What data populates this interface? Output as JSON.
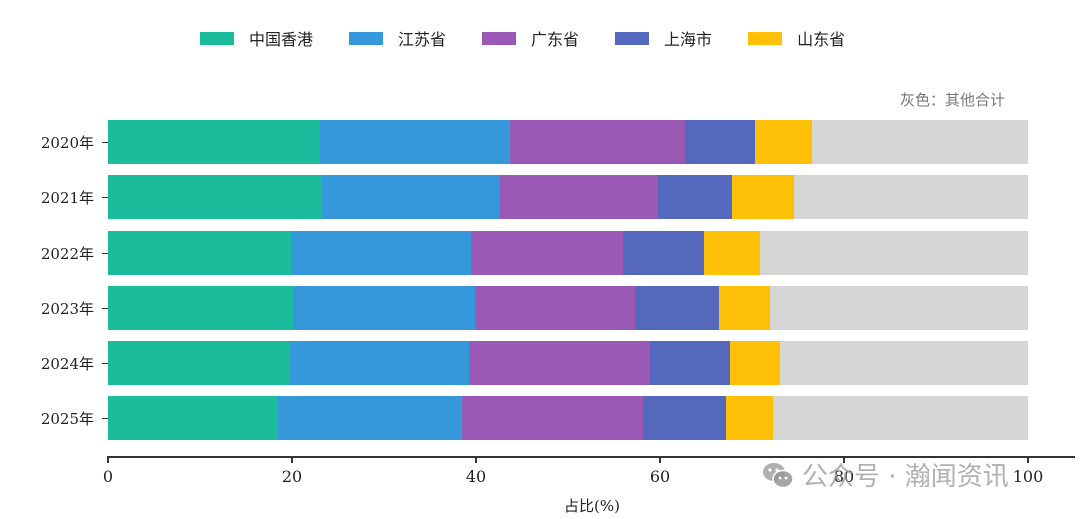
{
  "chart_data": {
    "type": "bar",
    "orientation": "horizontal",
    "stacked": true,
    "normalized_percent": true,
    "title": "",
    "xlabel": "占比(%)",
    "ylabel": "",
    "xlim": [
      0,
      100
    ],
    "xticks": [
      "0",
      "20",
      "40",
      "60",
      "80",
      "100"
    ],
    "grid": false,
    "legend_position": "top",
    "annotation": "灰色：其他合计",
    "categories": [
      "2020年",
      "2021年",
      "2022年",
      "2023年",
      "2024年",
      "2025年"
    ],
    "series": [
      {
        "name": "中国香港",
        "color": "#1ABC9C",
        "values": [
          23.0,
          23.3,
          19.9,
          20.1,
          19.8,
          18.5
        ]
      },
      {
        "name": "江苏省",
        "color": "#3498DB",
        "values": [
          20.7,
          19.3,
          19.6,
          19.8,
          19.4,
          20.0
        ]
      },
      {
        "name": "广东省",
        "color": "#9B59B6",
        "values": [
          19.0,
          17.2,
          16.5,
          17.4,
          19.7,
          19.7
        ]
      },
      {
        "name": "上海市",
        "color": "#5468BE",
        "values": [
          7.6,
          8.0,
          8.8,
          9.1,
          8.7,
          9.0
        ]
      },
      {
        "name": "山东省",
        "color": "#FFC107",
        "values": [
          6.2,
          6.8,
          6.1,
          5.6,
          5.4,
          5.1
        ]
      },
      {
        "name": "其他合计",
        "color": "#D5D5D3",
        "values": [
          23.5,
          25.4,
          29.1,
          28.0,
          27.0,
          27.7
        ],
        "in_legend": false
      }
    ]
  },
  "legend": {
    "items": [
      {
        "label": "中国香港",
        "color": "#1ABC9C"
      },
      {
        "label": "江苏省",
        "color": "#3498DB"
      },
      {
        "label": "广东省",
        "color": "#9B59B6"
      },
      {
        "label": "上海市",
        "color": "#5468BE"
      },
      {
        "label": "山东省",
        "color": "#FFC107"
      }
    ]
  },
  "note": "灰色：其他合计",
  "watermark": "公众号 · 瀚闻资讯"
}
